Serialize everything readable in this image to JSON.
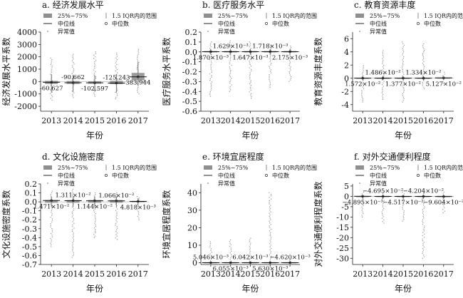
{
  "figure": {
    "legend": {
      "box": "25%~75%",
      "iqr": "1.5 IQR内的范围",
      "median_line": "中位线",
      "median_dot": "中位数",
      "outlier": "异常值"
    }
  },
  "chart_data": [
    {
      "type": "box",
      "title": "a. 经济发展水平",
      "xlabel": "年份",
      "ylabel": "经济发展水平系数",
      "categories": [
        "2013",
        "2014",
        "2015",
        "2016",
        "2017"
      ],
      "ylim": [
        -2400,
        4000
      ],
      "yticks": [
        4000,
        3000,
        2000,
        1000,
        0,
        -1000,
        -2000
      ],
      "ytick_labels": [
        "4000",
        "3000",
        "2000",
        "1000",
        "0",
        "-1000",
        "-2000"
      ],
      "value_labels": [
        "-60.627",
        "-90.662",
        "-102.597",
        "-125.243",
        "383.944"
      ],
      "value_label_pos": [
        "below",
        "above",
        "below",
        "above",
        "below"
      ],
      "boxes": [
        {
          "q1": -200,
          "q3": 50,
          "whisker_low": -900,
          "whisker_high": 600,
          "median": -60.627,
          "outlier_low": -1500,
          "outlier_high": 1900
        },
        {
          "q1": -190,
          "q3": 40,
          "whisker_low": -850,
          "whisker_high": 550,
          "median": -90.662,
          "outlier_low": -1300,
          "outlier_high": 2200
        },
        {
          "q1": -170,
          "q3": 20,
          "whisker_low": -800,
          "whisker_high": 500,
          "median": -102.597,
          "outlier_low": -1200,
          "outlier_high": 2400
        },
        {
          "q1": -210,
          "q3": 60,
          "whisker_low": -900,
          "whisker_high": 600,
          "median": -125.243,
          "outlier_low": -1400,
          "outlier_high": 2300
        },
        {
          "q1": 100,
          "q3": 700,
          "whisker_low": -300,
          "whisker_high": 1600,
          "median": 383.944,
          "outlier_low": -1000,
          "outlier_high": 2600
        }
      ]
    },
    {
      "type": "box",
      "title": "b. 医疗服务水平",
      "xlabel": "年份",
      "ylabel": "医疗服务水平系数",
      "categories": [
        "2013",
        "2014",
        "2015",
        "2016",
        "2017"
      ],
      "ylim": [
        -0.6,
        0.2
      ],
      "yticks": [
        0.2,
        0.1,
        0.0,
        -0.1,
        -0.2,
        -0.3,
        -0.4,
        -0.5,
        -0.6
      ],
      "ytick_labels": [
        "0.2",
        "0.1",
        "0.0",
        "-0.1",
        "-0.2",
        "-0.3",
        "-0.4",
        "-0.5",
        "-0.6"
      ],
      "value_labels": [
        "1.870×10⁻³",
        "1.629×10⁻³",
        "1.647×10⁻³",
        "1.718×10⁻³",
        "2.175×10⁻³"
      ],
      "value_label_pos": [
        "below",
        "above",
        "below",
        "above",
        "below"
      ],
      "boxes": [
        {
          "q1": -0.005,
          "q3": 0.008,
          "whisker_low": -0.03,
          "whisker_high": 0.03,
          "median": 0.00187,
          "outlier_low": -0.45,
          "outlier_high": 0.1
        },
        {
          "q1": -0.005,
          "q3": 0.008,
          "whisker_low": -0.03,
          "whisker_high": 0.03,
          "median": 0.00163,
          "outlier_low": -0.4,
          "outlier_high": 0.11
        },
        {
          "q1": -0.005,
          "q3": 0.008,
          "whisker_low": -0.03,
          "whisker_high": 0.03,
          "median": 0.00165,
          "outlier_low": -0.47,
          "outlier_high": 0.1
        },
        {
          "q1": -0.005,
          "q3": 0.008,
          "whisker_low": -0.03,
          "whisker_high": 0.03,
          "median": 0.00172,
          "outlier_low": -0.36,
          "outlier_high": 0.08
        },
        {
          "q1": -0.005,
          "q3": 0.008,
          "whisker_low": -0.03,
          "whisker_high": 0.03,
          "median": 0.00218,
          "outlier_low": -0.3,
          "outlier_high": 0.06
        }
      ]
    },
    {
      "type": "box",
      "title": "c. 教育资源丰度",
      "xlabel": "年份",
      "ylabel": "教育资源丰度系数",
      "categories": [
        "2013",
        "2014",
        "2015",
        "2016",
        "2017"
      ],
      "ylim": [
        -5,
        7
      ],
      "yticks": [
        6,
        4,
        2,
        0,
        -2,
        -4
      ],
      "ytick_labels": [
        "6",
        "4",
        "2",
        "0",
        "-2",
        "-4"
      ],
      "value_labels": [
        "1.572×10⁻²",
        "1.486×10⁻²",
        "1.377×10⁻²",
        "1.334×10⁻²",
        "5.127×10⁻²"
      ],
      "value_label_pos": [
        "below",
        "above",
        "below",
        "above",
        "below"
      ],
      "boxes": [
        {
          "q1": -0.06,
          "q3": 0.08,
          "whisker_low": -0.3,
          "whisker_high": 0.35,
          "median": 0.01572,
          "outlier_low": -3.6,
          "outlier_high": 1.9
        },
        {
          "q1": -0.06,
          "q3": 0.08,
          "whisker_low": -0.3,
          "whisker_high": 0.35,
          "median": 0.01486,
          "outlier_low": -3.2,
          "outlier_high": 4.2
        },
        {
          "q1": -0.06,
          "q3": 0.08,
          "whisker_low": -0.3,
          "whisker_high": 0.35,
          "median": 0.01377,
          "outlier_low": -3.6,
          "outlier_high": 5.5
        },
        {
          "q1": -0.06,
          "q3": 0.08,
          "whisker_low": -0.3,
          "whisker_high": 0.35,
          "median": 0.01334,
          "outlier_low": -1.6,
          "outlier_high": 5.2
        },
        {
          "q1": -0.05,
          "q3": 0.1,
          "whisker_low": -0.25,
          "whisker_high": 0.35,
          "median": 0.05127,
          "outlier_low": -0.8,
          "outlier_high": 0.9
        }
      ]
    },
    {
      "type": "box",
      "title": "d. 文化设施密度",
      "xlabel": "年份",
      "ylabel": "文化设施密度系数",
      "categories": [
        "2013",
        "2014",
        "2015",
        "2016",
        "2017"
      ],
      "ylim": [
        -0.7,
        0.2
      ],
      "yticks": [
        0.2,
        0.1,
        0.0,
        -0.1,
        -0.2,
        -0.3,
        -0.4,
        -0.5,
        -0.6,
        -0.7
      ],
      "ytick_labels": [
        "0.2",
        "0.1",
        "0.0",
        "-0.1",
        "-0.2",
        "-0.3",
        "-0.4",
        "-0.5",
        "-0.6",
        "-0.7"
      ],
      "value_labels": [
        "1.471×10⁻²",
        "1.311×10⁻²",
        "1.144×10⁻²",
        "1.066×10⁻²",
        "4.818×10⁻³"
      ],
      "value_label_pos": [
        "below",
        "above",
        "below",
        "above",
        "below"
      ],
      "boxes": [
        {
          "q1": -0.01,
          "q3": 0.02,
          "whisker_low": -0.06,
          "whisker_high": 0.06,
          "median": 0.01471,
          "outlier_low": -0.5,
          "outlier_high": 0.12
        },
        {
          "q1": -0.01,
          "q3": 0.02,
          "whisker_low": -0.06,
          "whisker_high": 0.06,
          "median": 0.01311,
          "outlier_low": -0.62,
          "outlier_high": 0.14
        },
        {
          "q1": -0.01,
          "q3": 0.02,
          "whisker_low": -0.06,
          "whisker_high": 0.06,
          "median": 0.01144,
          "outlier_low": -0.4,
          "outlier_high": 0.1
        },
        {
          "q1": -0.01,
          "q3": 0.02,
          "whisker_low": -0.06,
          "whisker_high": 0.06,
          "median": 0.01066,
          "outlier_low": -0.42,
          "outlier_high": 0.1
        },
        {
          "q1": -0.005,
          "q3": 0.01,
          "whisker_low": -0.04,
          "whisker_high": 0.04,
          "median": 0.004818,
          "outlier_low": -0.2,
          "outlier_high": 0.06
        }
      ]
    },
    {
      "type": "box",
      "title": "e. 环境宜居程度",
      "xlabel": "年份",
      "ylabel": "环境宜居程度系数",
      "categories": [
        "2013",
        "2014",
        "2015",
        "2016",
        "2017"
      ],
      "ylim": [
        -1,
        45
      ],
      "yticks": [
        40,
        30,
        20,
        10,
        0
      ],
      "ytick_labels": [
        "40",
        "30",
        "20",
        "10",
        "0"
      ],
      "value_labels": [
        "5.046×10⁻³",
        "6.055×10⁻³",
        "6.042×10⁻³",
        "5.630×10⁻³",
        "−4.620×10⁻³"
      ],
      "value_label_pos": [
        "above",
        "below",
        "above",
        "below",
        "above"
      ],
      "boxes": [
        {
          "q1": -0.2,
          "q3": 0.3,
          "whisker_low": -0.6,
          "whisker_high": 0.8,
          "median": 0.005046,
          "outlier_low": -0.9,
          "outlier_high": 12
        },
        {
          "q1": -0.2,
          "q3": 0.3,
          "whisker_low": -0.6,
          "whisker_high": 0.8,
          "median": 0.006055,
          "outlier_low": -0.9,
          "outlier_high": 13
        },
        {
          "q1": -0.2,
          "q3": 0.3,
          "whisker_low": -0.6,
          "whisker_high": 0.8,
          "median": 0.006042,
          "outlier_low": -0.9,
          "outlier_high": 14
        },
        {
          "q1": -0.2,
          "q3": 0.3,
          "whisker_low": -0.6,
          "whisker_high": 0.8,
          "median": 0.00563,
          "outlier_low": -0.9,
          "outlier_high": 40
        },
        {
          "q1": -0.2,
          "q3": 0.3,
          "whisker_low": -0.6,
          "whisker_high": 0.8,
          "median": -0.00462,
          "outlier_low": -0.9,
          "outlier_high": 2
        }
      ]
    },
    {
      "type": "box",
      "title": "f. 对外交通便利程度",
      "xlabel": "年份",
      "ylabel": "对外交通便利程度系数",
      "categories": [
        "2013",
        "2014",
        "2015",
        "2016",
        "2017"
      ],
      "ylim": [
        -33,
        6
      ],
      "yticks": [
        5,
        0,
        -5,
        -10,
        -15,
        -20,
        -25,
        -30
      ],
      "ytick_labels": [
        "5",
        "0",
        "-5",
        "-10",
        "-15",
        "-20",
        "-25",
        "-30"
      ],
      "value_labels": [
        "−4.895×10⁻³",
        "−4.695×10⁻²",
        "−4.517×10⁻²",
        "−4.204×10⁻²",
        "−9.604×10⁻²"
      ],
      "value_label_pos": [
        "below",
        "above",
        "below",
        "above",
        "below"
      ],
      "boxes": [
        {
          "q1": -0.4,
          "q3": 0.2,
          "whisker_low": -1.2,
          "whisker_high": 0.8,
          "median": -0.004895,
          "outlier_low": -10,
          "outlier_high": 2
        },
        {
          "q1": -0.4,
          "q3": 0.2,
          "whisker_low": -1.2,
          "whisker_high": 0.8,
          "median": -0.04695,
          "outlier_low": -13,
          "outlier_high": 2
        },
        {
          "q1": -0.4,
          "q3": 0.2,
          "whisker_low": -1.2,
          "whisker_high": 0.8,
          "median": -0.04517,
          "outlier_low": -12,
          "outlier_high": 2
        },
        {
          "q1": -0.4,
          "q3": 0.2,
          "whisker_low": -1.2,
          "whisker_high": 0.8,
          "median": -0.04204,
          "outlier_low": -30,
          "outlier_high": 2
        },
        {
          "q1": -0.4,
          "q3": 0.2,
          "whisker_low": -1.2,
          "whisker_high": 0.8,
          "median": -0.09604,
          "outlier_low": -8,
          "outlier_high": 2
        }
      ]
    }
  ]
}
